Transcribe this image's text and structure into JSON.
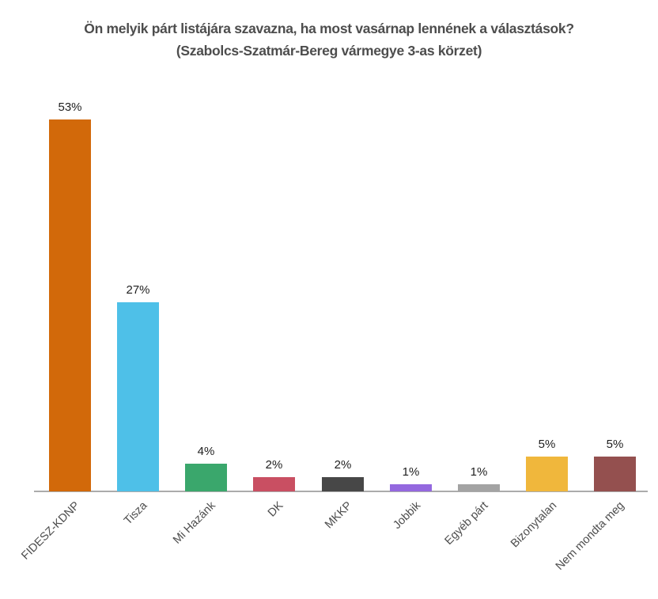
{
  "title": {
    "line1": "Ön melyik párt listájára szavazna, ha most vasárnap lennének a választások?",
    "line2": "(Szabolcs-Szatmár-Bereg vármegye 3-as körzet)"
  },
  "chart_data": {
    "type": "bar",
    "title": "Ön melyik párt listájára szavazna, ha most vasárnap lennének a választások? (Szabolcs-Szatmár-Bereg vármegye 3-as körzet)",
    "categories": [
      "FIDESZ-KDNP",
      "Tisza",
      "Mi Hazánk",
      "DK",
      "MKKP",
      "Jobbik",
      "Egyéb párt",
      "Bizonytalan",
      "Nem mondta meg"
    ],
    "values": [
      53,
      27,
      4,
      2,
      2,
      1,
      1,
      5,
      5
    ],
    "value_labels": [
      "53%",
      "27%",
      "4%",
      "2%",
      "2%",
      "1%",
      "1%",
      "5%",
      "5%"
    ],
    "bar_colors": [
      "#d2690a",
      "#4ec0e8",
      "#3aa76c",
      "#c94f62",
      "#474747",
      "#9468df",
      "#a3a3a3",
      "#f0b73c",
      "#94504f"
    ],
    "xlabel": "",
    "ylabel": "",
    "ylim": [
      0,
      56
    ],
    "grid": false,
    "legend": false,
    "value_labels_shown": true,
    "x_label_rotation_deg": 45,
    "axis_line_color": "#ababab",
    "title_color": "#4d4d4d",
    "label_color": "#4d4d4d",
    "value_label_color": "#1f1f1f"
  }
}
